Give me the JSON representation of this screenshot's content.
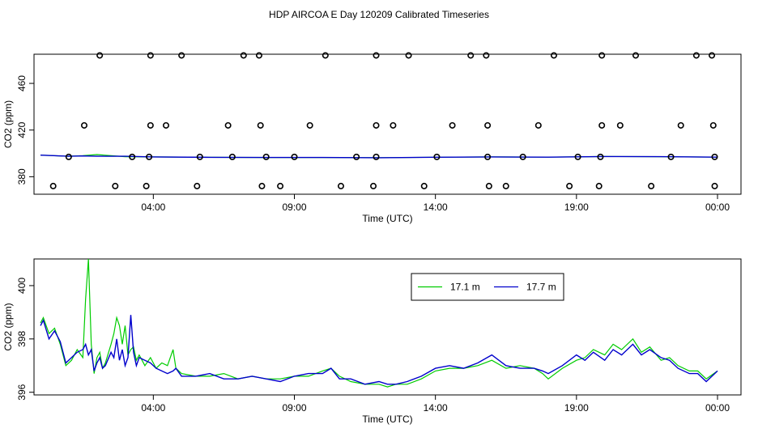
{
  "title": "HDP AIRCOA E  Day 120209  Calibrated Timeseries",
  "chart_data": [
    {
      "type": "line+scatter",
      "xlabel": "Time (UTC)",
      "ylabel": "CO2 (ppm)",
      "xlim": [
        0,
        24
      ],
      "ylim": [
        365,
        485
      ],
      "x_ticks": [
        {
          "x": 4,
          "label": "04:00"
        },
        {
          "x": 9,
          "label": "09:00"
        },
        {
          "x": 14,
          "label": "14:00"
        },
        {
          "x": 19,
          "label": "19:00"
        },
        {
          "x": 24,
          "label": "00:00"
        }
      ],
      "y_ticks": [
        380,
        420,
        460
      ],
      "series": [
        {
          "color": "#00cc00",
          "x": [
            0,
            1,
            1.5,
            2,
            3,
            4,
            6,
            8,
            10,
            12,
            14,
            16,
            18,
            20,
            22,
            24
          ],
          "y": [
            398.5,
            397.5,
            398,
            399,
            397.2,
            397,
            396.6,
            396.5,
            396.5,
            396.3,
            396.7,
            397,
            396.8,
            397.3,
            397.2,
            396.8
          ]
        },
        {
          "color": "#0000cc",
          "x": [
            0,
            1,
            1.5,
            2,
            3,
            4,
            6,
            8,
            10,
            12,
            14,
            16,
            18,
            20,
            22,
            24
          ],
          "y": [
            398.5,
            397.5,
            397.8,
            397.5,
            397.5,
            397,
            396.6,
            396.5,
            396.5,
            396.3,
            396.7,
            397,
            396.8,
            397.3,
            397.2,
            396.8
          ]
        }
      ],
      "markers": {
        "x": [
          2.1,
          3.9,
          5.0,
          7.2,
          7.75,
          10.1,
          11.9,
          13.05,
          15.25,
          15.8,
          18.2,
          19.9,
          21.1,
          23.25,
          23.8,
          1.55,
          3.9,
          4.45,
          6.65,
          7.8,
          9.55,
          11.9,
          12.5,
          14.6,
          15.85,
          17.65,
          19.9,
          20.55,
          22.7,
          23.85,
          1.0,
          3.25,
          3.85,
          5.65,
          6.8,
          8.0,
          9.0,
          11.2,
          11.9,
          14.05,
          15.85,
          17.1,
          19.05,
          19.85,
          22.35,
          23.9,
          0.45,
          2.65,
          3.75,
          5.55,
          7.85,
          8.5,
          10.65,
          11.8,
          13.6,
          15.9,
          16.5,
          18.75,
          19.8,
          21.65,
          23.9
        ],
        "y": [
          484,
          484,
          484,
          484,
          484,
          484,
          484,
          484,
          484,
          484,
          484,
          484,
          484,
          484,
          484,
          424,
          424,
          424,
          424,
          424,
          424,
          424,
          424,
          424,
          424,
          424,
          424,
          424,
          424,
          424,
          397,
          397,
          397,
          397,
          397,
          397,
          397,
          397,
          397,
          397,
          397,
          397,
          397,
          397,
          397,
          397,
          372,
          372,
          372,
          372,
          372,
          372,
          372,
          372,
          372,
          372,
          372,
          372,
          372,
          372,
          372
        ]
      }
    },
    {
      "type": "line",
      "xlabel": "Time (UTC)",
      "ylabel": "CO2 (ppm)",
      "xlim": [
        0,
        24
      ],
      "ylim": [
        395.9,
        401
      ],
      "x_ticks": [
        {
          "x": 4,
          "label": "04:00"
        },
        {
          "x": 9,
          "label": "09:00"
        },
        {
          "x": 14,
          "label": "14:00"
        },
        {
          "x": 19,
          "label": "19:00"
        },
        {
          "x": 24,
          "label": "00:00"
        }
      ],
      "y_ticks": [
        396,
        398,
        400
      ],
      "legend": "top-right",
      "series": [
        {
          "name": "17.1 m",
          "color": "#00cc00",
          "x": [
            0,
            0.1,
            0.3,
            0.5,
            0.7,
            0.9,
            1.1,
            1.3,
            1.5,
            1.6,
            1.7,
            1.8,
            1.9,
            2.0,
            2.1,
            2.2,
            2.3,
            2.5,
            2.6,
            2.7,
            2.8,
            2.9,
            3.0,
            3.1,
            3.2,
            3.3,
            3.4,
            3.5,
            3.7,
            3.9,
            4.1,
            4.3,
            4.5,
            4.7,
            4.8,
            5.0,
            5.5,
            6.0,
            6.5,
            7.0,
            7.5,
            8.0,
            8.5,
            9.0,
            9.5,
            10.0,
            10.3,
            10.6,
            11.0,
            11.5,
            12.0,
            12.3,
            12.6,
            13.0,
            13.5,
            14.0,
            14.5,
            15.0,
            15.5,
            16.0,
            16.5,
            17.0,
            17.5,
            17.8,
            18.0,
            18.5,
            19.0,
            19.3,
            19.6,
            20.0,
            20.3,
            20.6,
            21.0,
            21.3,
            21.6,
            22.0,
            22.3,
            22.6,
            23.0,
            23.3,
            23.6,
            24.0
          ],
          "y": [
            398.6,
            398.8,
            398.2,
            398.4,
            397.8,
            397.0,
            397.2,
            397.6,
            397.3,
            399.5,
            401.0,
            397.8,
            396.7,
            397.3,
            397.5,
            396.9,
            397.1,
            397.8,
            398.2,
            398.8,
            398.5,
            397.8,
            398.5,
            397.4,
            397.6,
            397.7,
            397.2,
            397.4,
            397.0,
            397.3,
            396.9,
            397.1,
            397.0,
            397.6,
            396.9,
            396.7,
            396.6,
            396.6,
            396.7,
            396.5,
            396.6,
            396.5,
            396.5,
            396.6,
            396.6,
            396.8,
            396.9,
            396.6,
            396.4,
            396.3,
            396.3,
            396.2,
            396.3,
            396.3,
            396.5,
            396.8,
            396.9,
            396.9,
            397.0,
            397.2,
            396.9,
            397.0,
            396.9,
            396.7,
            396.5,
            396.9,
            397.2,
            397.3,
            397.6,
            397.4,
            397.8,
            397.6,
            398.0,
            397.5,
            397.7,
            397.2,
            397.3,
            397.0,
            396.8,
            396.8,
            396.5,
            396.8
          ]
        },
        {
          "name": "17.7 m",
          "color": "#0000cc",
          "x": [
            0,
            0.1,
            0.3,
            0.5,
            0.7,
            0.9,
            1.1,
            1.3,
            1.5,
            1.6,
            1.7,
            1.8,
            1.9,
            2.0,
            2.1,
            2.2,
            2.3,
            2.5,
            2.6,
            2.7,
            2.8,
            2.9,
            3.0,
            3.1,
            3.2,
            3.3,
            3.4,
            3.5,
            3.7,
            3.9,
            4.1,
            4.3,
            4.5,
            4.7,
            4.8,
            5.0,
            5.5,
            6.0,
            6.5,
            7.0,
            7.5,
            8.0,
            8.5,
            9.0,
            9.5,
            10.0,
            10.3,
            10.6,
            11.0,
            11.5,
            12.0,
            12.3,
            12.6,
            13.0,
            13.5,
            14.0,
            14.5,
            15.0,
            15.5,
            16.0,
            16.5,
            17.0,
            17.5,
            17.8,
            18.0,
            18.5,
            19.0,
            19.3,
            19.6,
            20.0,
            20.3,
            20.6,
            21.0,
            21.3,
            21.6,
            22.0,
            22.3,
            22.6,
            23.0,
            23.3,
            23.6,
            24.0
          ],
          "y": [
            398.5,
            398.7,
            398.0,
            398.3,
            397.9,
            397.1,
            397.3,
            397.5,
            397.6,
            397.8,
            397.4,
            397.6,
            396.8,
            397.1,
            397.3,
            396.9,
            397.0,
            397.5,
            397.3,
            398.0,
            397.2,
            397.6,
            397.0,
            397.3,
            398.9,
            397.5,
            397.0,
            397.3,
            397.2,
            397.1,
            396.9,
            396.8,
            396.7,
            396.8,
            396.9,
            396.6,
            396.6,
            396.7,
            396.5,
            396.5,
            396.6,
            396.5,
            396.4,
            396.6,
            396.7,
            396.7,
            396.9,
            396.5,
            396.5,
            396.3,
            396.4,
            396.3,
            396.3,
            396.4,
            396.6,
            396.9,
            397.0,
            396.9,
            397.1,
            397.4,
            397.0,
            396.9,
            396.9,
            396.8,
            396.7,
            397.0,
            397.4,
            397.2,
            397.5,
            397.2,
            397.6,
            397.4,
            397.8,
            397.4,
            397.6,
            397.3,
            397.2,
            396.9,
            396.7,
            396.7,
            396.4,
            396.8
          ]
        }
      ]
    }
  ]
}
